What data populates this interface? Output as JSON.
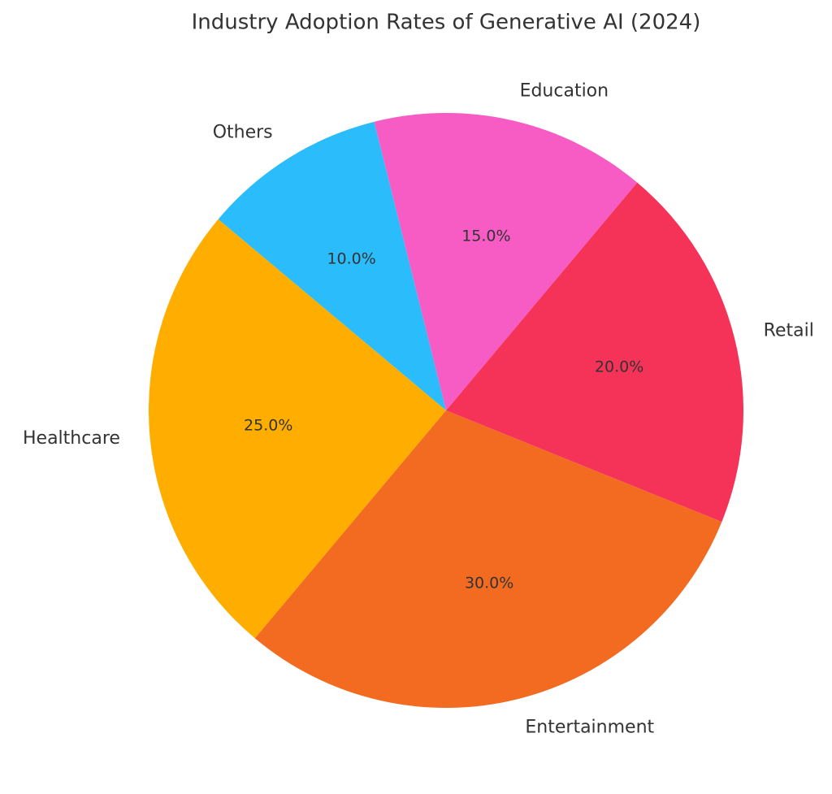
{
  "chart_data": {
    "type": "pie",
    "title": "Industry Adoption Rates of Generative AI (2024)",
    "categories": [
      "Healthcare",
      "Entertainment",
      "Retail",
      "Education",
      "Others"
    ],
    "values": [
      25,
      30,
      20,
      15,
      10
    ],
    "value_labels": [
      "25.0%",
      "30.0%",
      "20.0%",
      "15.0%",
      "10.0%"
    ],
    "colors": [
      "#ffae00",
      "#f26b21",
      "#f53358",
      "#f75bc4",
      "#2bbcfc"
    ]
  }
}
